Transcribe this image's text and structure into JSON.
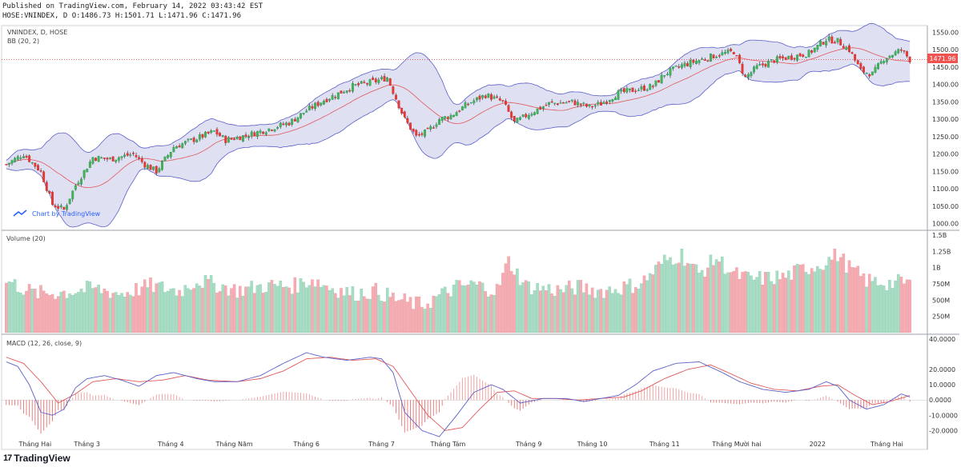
{
  "header": {
    "published": "Published on TradingView.com, February 14, 2022 03:43:42 EST",
    "ohlc": "HOSE:VNINDEX, D O:1486.73 H:1501.71 L:1471.96 C:1471.96"
  },
  "panes": {
    "price_title": "VNINDEX, D, HOSE",
    "bb_title": "BB (20, 2)",
    "volume_title": "Volume (20)",
    "macd_title": "MACD (12, 26, close, 9)",
    "watermark": "Chart by TradingView",
    "last_price": "1471.96"
  },
  "footer": {
    "brand": "TradingView"
  },
  "colors": {
    "up": "#26a69a",
    "down": "#ef5350",
    "bb_fill": "#d6d5ef",
    "bb_band": "#5b5fc7",
    "basis": "#e05757",
    "macd": "#5b5fc7",
    "signal": "#e05757"
  },
  "chart_data": {
    "type": "candlestick",
    "price_axis": {
      "ticks": [
        1550,
        1500,
        1450,
        1400,
        1350,
        1300,
        1250,
        1200,
        1150,
        1100,
        1050,
        1000
      ],
      "ylim": [
        985,
        1565
      ],
      "last": 1471.96
    },
    "volume_axis": {
      "ticks": [
        "1.5B",
        "1.25B",
        "1B",
        "750M",
        "500M",
        "250M"
      ],
      "ylim": [
        0,
        1550
      ]
    },
    "macd_axis": {
      "ticks": [
        "40.0000",
        "20.0000",
        "10.0000",
        "0.0000",
        "-10.0000",
        "-20.0000"
      ],
      "ylim": [
        -25,
        42
      ]
    },
    "x_labels": [
      "Tháng Hai",
      "Tháng 3",
      "Tháng 4",
      "Tháng Năm",
      "Tháng 6",
      "Tháng 7",
      "Tháng Tám",
      "Tháng 9",
      "Tháng 10",
      "Tháng 11",
      "Tháng Mười hai",
      "2022",
      "Tháng Hai"
    ],
    "x_label_index": [
      10,
      28,
      57,
      79,
      104,
      130,
      153,
      181,
      203,
      228,
      253,
      281,
      305
    ],
    "n_bars": 314,
    "price_path": [
      [
        0,
        1170
      ],
      [
        6,
        1200
      ],
      [
        12,
        1150
      ],
      [
        16,
        1055
      ],
      [
        20,
        1040
      ],
      [
        24,
        1110
      ],
      [
        30,
        1190
      ],
      [
        36,
        1185
      ],
      [
        44,
        1200
      ],
      [
        48,
        1170
      ],
      [
        52,
        1150
      ],
      [
        58,
        1220
      ],
      [
        66,
        1245
      ],
      [
        72,
        1265
      ],
      [
        76,
        1240
      ],
      [
        84,
        1255
      ],
      [
        92,
        1275
      ],
      [
        98,
        1290
      ],
      [
        104,
        1325
      ],
      [
        110,
        1355
      ],
      [
        114,
        1370
      ],
      [
        120,
        1395
      ],
      [
        128,
        1410
      ],
      [
        132,
        1420
      ],
      [
        135,
        1360
      ],
      [
        138,
        1300
      ],
      [
        142,
        1250
      ],
      [
        146,
        1265
      ],
      [
        150,
        1300
      ],
      [
        154,
        1310
      ],
      [
        160,
        1345
      ],
      [
        166,
        1370
      ],
      [
        172,
        1350
      ],
      [
        176,
        1290
      ],
      [
        182,
        1320
      ],
      [
        188,
        1345
      ],
      [
        196,
        1350
      ],
      [
        202,
        1335
      ],
      [
        206,
        1345
      ],
      [
        212,
        1375
      ],
      [
        218,
        1385
      ],
      [
        224,
        1395
      ],
      [
        228,
        1430
      ],
      [
        234,
        1455
      ],
      [
        240,
        1470
      ],
      [
        246,
        1485
      ],
      [
        252,
        1495
      ],
      [
        256,
        1420
      ],
      [
        260,
        1450
      ],
      [
        266,
        1470
      ],
      [
        272,
        1480
      ],
      [
        278,
        1490
      ],
      [
        284,
        1530
      ],
      [
        288,
        1525
      ],
      [
        292,
        1500
      ],
      [
        296,
        1440
      ],
      [
        300,
        1430
      ],
      [
        304,
        1475
      ],
      [
        310,
        1500
      ],
      [
        313,
        1472
      ]
    ],
    "volume_path": [
      [
        0,
        800
      ],
      [
        10,
        600
      ],
      [
        20,
        620
      ],
      [
        30,
        680
      ],
      [
        40,
        600
      ],
      [
        50,
        720
      ],
      [
        60,
        640
      ],
      [
        66,
        800
      ],
      [
        72,
        750
      ],
      [
        80,
        650
      ],
      [
        90,
        720
      ],
      [
        100,
        720
      ],
      [
        106,
        820
      ],
      [
        112,
        700
      ],
      [
        120,
        600
      ],
      [
        128,
        640
      ],
      [
        136,
        500
      ],
      [
        144,
        420
      ],
      [
        150,
        560
      ],
      [
        156,
        700
      ],
      [
        162,
        740
      ],
      [
        170,
        650
      ],
      [
        174,
        1100
      ],
      [
        180,
        720
      ],
      [
        186,
        680
      ],
      [
        192,
        650
      ],
      [
        198,
        700
      ],
      [
        206,
        640
      ],
      [
        214,
        700
      ],
      [
        220,
        760
      ],
      [
        228,
        1100
      ],
      [
        234,
        1200
      ],
      [
        240,
        900
      ],
      [
        246,
        1150
      ],
      [
        252,
        900
      ],
      [
        258,
        820
      ],
      [
        264,
        840
      ],
      [
        270,
        860
      ],
      [
        276,
        980
      ],
      [
        282,
        1050
      ],
      [
        288,
        1200
      ],
      [
        292,
        1000
      ],
      [
        298,
        800
      ],
      [
        306,
        760
      ],
      [
        313,
        780
      ]
    ],
    "macd_path": [
      [
        0,
        25
      ],
      [
        4,
        22
      ],
      [
        8,
        10
      ],
      [
        12,
        -8
      ],
      [
        16,
        -10
      ],
      [
        20,
        -6
      ],
      [
        24,
        8
      ],
      [
        28,
        14
      ],
      [
        34,
        16
      ],
      [
        40,
        13
      ],
      [
        46,
        9
      ],
      [
        52,
        16
      ],
      [
        58,
        18
      ],
      [
        66,
        14
      ],
      [
        72,
        12
      ],
      [
        80,
        12
      ],
      [
        88,
        16
      ],
      [
        96,
        24
      ],
      [
        104,
        31
      ],
      [
        110,
        28
      ],
      [
        118,
        26
      ],
      [
        126,
        28
      ],
      [
        130,
        27
      ],
      [
        134,
        18
      ],
      [
        138,
        -8
      ],
      [
        144,
        -20
      ],
      [
        150,
        -24
      ],
      [
        156,
        -10
      ],
      [
        162,
        5
      ],
      [
        168,
        10
      ],
      [
        172,
        7
      ],
      [
        178,
        -2
      ],
      [
        186,
        1
      ],
      [
        194,
        1
      ],
      [
        200,
        -1
      ],
      [
        206,
        1
      ],
      [
        212,
        3
      ],
      [
        218,
        10
      ],
      [
        224,
        19
      ],
      [
        232,
        24
      ],
      [
        240,
        25
      ],
      [
        248,
        18
      ],
      [
        254,
        12
      ],
      [
        262,
        7
      ],
      [
        270,
        5
      ],
      [
        278,
        7
      ],
      [
        284,
        12
      ],
      [
        288,
        9
      ],
      [
        292,
        0
      ],
      [
        298,
        -6
      ],
      [
        304,
        -3
      ],
      [
        310,
        4
      ],
      [
        313,
        2
      ]
    ],
    "signal_path": [
      [
        0,
        28
      ],
      [
        6,
        24
      ],
      [
        12,
        12
      ],
      [
        18,
        -2
      ],
      [
        24,
        4
      ],
      [
        30,
        12
      ],
      [
        38,
        14
      ],
      [
        46,
        12
      ],
      [
        54,
        13
      ],
      [
        62,
        16
      ],
      [
        70,
        13
      ],
      [
        80,
        12
      ],
      [
        88,
        14
      ],
      [
        96,
        19
      ],
      [
        104,
        27
      ],
      [
        112,
        28
      ],
      [
        120,
        26
      ],
      [
        128,
        27
      ],
      [
        134,
        22
      ],
      [
        140,
        6
      ],
      [
        146,
        -10
      ],
      [
        152,
        -20
      ],
      [
        158,
        -18
      ],
      [
        164,
        -6
      ],
      [
        170,
        5
      ],
      [
        176,
        6
      ],
      [
        182,
        1
      ],
      [
        190,
        1
      ],
      [
        198,
        0
      ],
      [
        206,
        1
      ],
      [
        214,
        2
      ],
      [
        220,
        6
      ],
      [
        228,
        14
      ],
      [
        236,
        20
      ],
      [
        244,
        23
      ],
      [
        250,
        18
      ],
      [
        258,
        11
      ],
      [
        266,
        7
      ],
      [
        274,
        6
      ],
      [
        282,
        9
      ],
      [
        288,
        10
      ],
      [
        294,
        3
      ],
      [
        300,
        -3
      ],
      [
        306,
        -1
      ],
      [
        313,
        3
      ]
    ]
  }
}
